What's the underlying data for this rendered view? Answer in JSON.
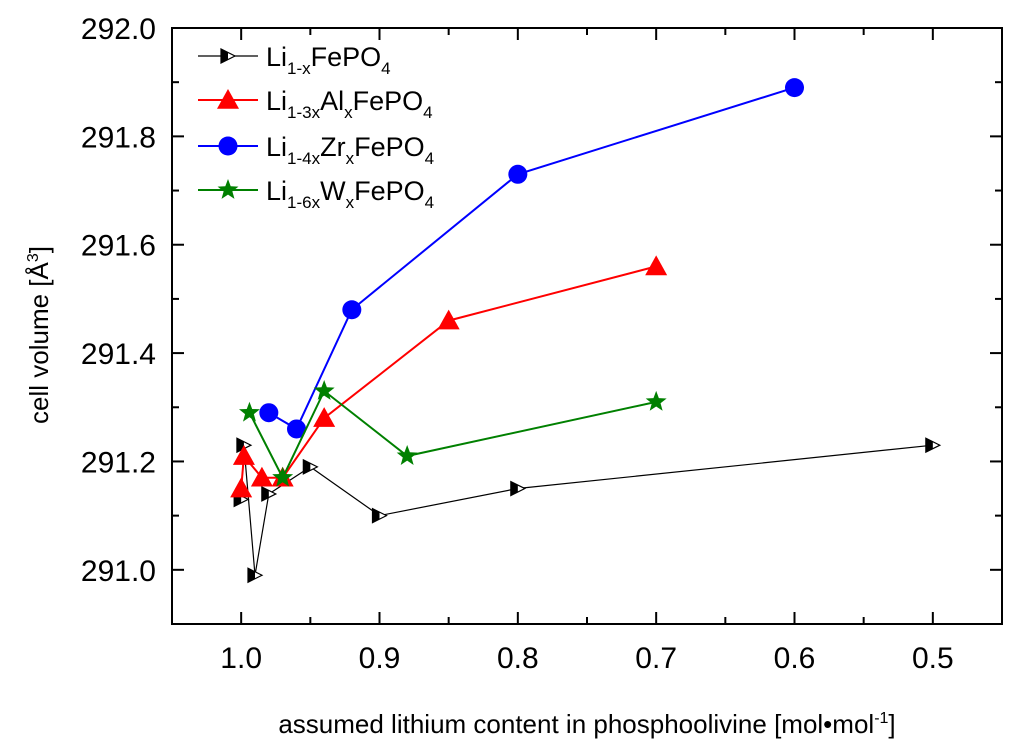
{
  "chart_data": {
    "type": "line",
    "title": "",
    "xlabel": "assumed lithium content in phosphoolivine [mol•mol",
    "xlabel_sup": "-1",
    "xlabel_end": "]",
    "ylabel": "cell volume [Å",
    "ylabel_sup": "3",
    "ylabel_end": "]",
    "xlim": [
      1.05,
      0.45
    ],
    "ylim": [
      290.9,
      292.0
    ],
    "x_reversed": true,
    "x_ticks": [
      1.0,
      0.9,
      0.8,
      0.7,
      0.6,
      0.5
    ],
    "x_tick_labels": [
      "1.0",
      "0.9",
      "0.8",
      "0.7",
      "0.6",
      "0.5"
    ],
    "y_ticks": [
      291.0,
      291.2,
      291.4,
      291.6,
      291.8,
      292.0
    ],
    "y_tick_labels": [
      "291.0",
      "291.2",
      "291.4",
      "291.6",
      "291.8",
      "292.0"
    ],
    "grid": false,
    "legend_position": "top-left",
    "series": [
      {
        "legend": [
          {
            "t": "Li"
          },
          {
            "t": "1-x",
            "sub": true
          },
          {
            "t": "FePO"
          },
          {
            "t": "4",
            "sub": true
          }
        ],
        "color": "#000000",
        "marker": "triangle-right-open",
        "x": [
          1.0,
          0.998,
          0.99,
          0.98,
          0.95,
          0.9,
          0.8,
          0.5
        ],
        "y": [
          291.13,
          291.23,
          290.99,
          291.14,
          291.19,
          291.1,
          291.15,
          291.23
        ]
      },
      {
        "legend": [
          {
            "t": "Li"
          },
          {
            "t": "1-3x",
            "sub": true
          },
          {
            "t": "Al"
          },
          {
            "t": "x",
            "sub": true
          },
          {
            "t": "FePO"
          },
          {
            "t": "4",
            "sub": true
          }
        ],
        "color": "#ff0000",
        "marker": "triangle-up",
        "x": [
          1.0,
          0.998,
          0.985,
          0.97,
          0.94,
          0.85,
          0.7
        ],
        "y": [
          291.15,
          291.21,
          291.17,
          291.17,
          291.28,
          291.46,
          291.56
        ]
      },
      {
        "legend": [
          {
            "t": "Li"
          },
          {
            "t": "1-4x",
            "sub": true
          },
          {
            "t": "Zr"
          },
          {
            "t": "x",
            "sub": true
          },
          {
            "t": "FePO"
          },
          {
            "t": "4",
            "sub": true
          }
        ],
        "color": "#0000ff",
        "marker": "circle",
        "x": [
          0.98,
          0.96,
          0.92,
          0.8,
          0.6
        ],
        "y": [
          291.29,
          291.26,
          291.48,
          291.73,
          291.89
        ]
      },
      {
        "legend": [
          {
            "t": "Li"
          },
          {
            "t": "1-6x",
            "sub": true
          },
          {
            "t": "W"
          },
          {
            "t": "x",
            "sub": true
          },
          {
            "t": "FePO"
          },
          {
            "t": "4",
            "sub": true
          }
        ],
        "color": "#008000",
        "marker": "star",
        "x": [
          0.994,
          0.97,
          0.94,
          0.88,
          0.7
        ],
        "y": [
          291.29,
          291.17,
          291.33,
          291.21,
          291.31
        ]
      }
    ]
  }
}
